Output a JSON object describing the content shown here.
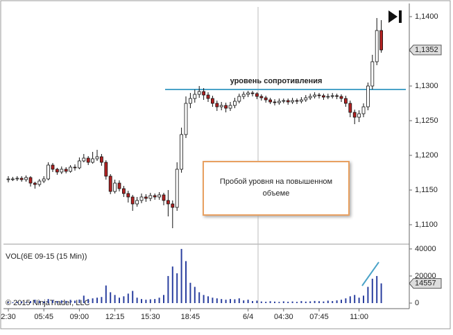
{
  "chart_data": {
    "type": "candlestick",
    "categories": [
      "2:30",
      null,
      null,
      null,
      null,
      null,
      null,
      null,
      "05:45",
      null,
      null,
      null,
      null,
      null,
      null,
      null,
      "09:00",
      null,
      null,
      null,
      null,
      null,
      null,
      null,
      "12:15",
      null,
      null,
      null,
      null,
      null,
      null,
      null,
      "15:30",
      null,
      null,
      null,
      null,
      null,
      null,
      null,
      null,
      "18:45",
      null,
      null,
      null,
      null,
      null,
      null,
      null,
      null,
      null,
      null,
      null,
      null,
      "6/4",
      null,
      null,
      null,
      null,
      null,
      null,
      null,
      "04:30",
      null,
      null,
      null,
      null,
      null,
      null,
      null,
      "07:45",
      null,
      null,
      null,
      null,
      null,
      null,
      null,
      null,
      "11:00",
      null,
      null,
      null,
      null,
      null
    ],
    "open": [
      1.1165,
      1.1166,
      1.1166,
      1.1167,
      1.1165,
      1.1168,
      1.116,
      1.1158,
      1.1163,
      1.1166,
      1.1186,
      1.118,
      1.1176,
      1.118,
      1.1177,
      1.1183,
      1.1182,
      1.1192,
      1.1196,
      1.119,
      1.1195,
      1.1198,
      1.119,
      1.117,
      1.1148,
      1.116,
      1.1152,
      1.1145,
      1.114,
      1.113,
      1.1135,
      1.114,
      1.1138,
      1.1142,
      1.114,
      1.1143,
      1.1135,
      1.113,
      1.1125,
      1.118,
      1.123,
      1.1275,
      1.1282,
      1.1288,
      1.1292,
      1.1287,
      1.1282,
      1.1275,
      1.127,
      1.1272,
      1.1268,
      1.1272,
      1.1278,
      1.1285,
      1.1288,
      1.129,
      1.1289,
      1.1285,
      1.1283,
      1.128,
      1.1277,
      1.1276,
      1.1278,
      1.1279,
      1.1277,
      1.1279,
      1.1278,
      1.128,
      1.1283,
      1.1285,
      1.1287,
      1.1286,
      1.1284,
      1.1285,
      1.1286,
      1.1285,
      1.1282,
      1.1275,
      1.1262,
      1.1255,
      1.126,
      1.127,
      1.13,
      1.1335,
      1.138
    ],
    "high": [
      1.117,
      1.1169,
      1.117,
      1.117,
      1.1171,
      1.117,
      1.1162,
      1.1166,
      1.117,
      1.119,
      1.1189,
      1.1182,
      1.1184,
      1.1183,
      1.1186,
      1.1187,
      1.1197,
      1.1202,
      1.1199,
      1.1205,
      1.1208,
      1.1202,
      1.1193,
      1.1173,
      1.1165,
      1.1164,
      1.1156,
      1.1149,
      1.1143,
      1.114,
      1.1145,
      1.1144,
      1.1146,
      1.1145,
      1.1147,
      1.1146,
      1.115,
      1.1135,
      1.119,
      1.124,
      1.1285,
      1.129,
      1.1295,
      1.13,
      1.1297,
      1.1291,
      1.1286,
      1.1279,
      1.1277,
      1.1276,
      1.1277,
      1.1283,
      1.1289,
      1.1292,
      1.1293,
      1.1293,
      1.1291,
      1.1288,
      1.1286,
      1.1283,
      1.1281,
      1.1282,
      1.1282,
      1.1282,
      1.1283,
      1.1282,
      1.1284,
      1.1287,
      1.1289,
      1.1291,
      1.129,
      1.1289,
      1.1289,
      1.129,
      1.1289,
      1.1288,
      1.1286,
      1.1279,
      1.1266,
      1.1265,
      1.1275,
      1.1305,
      1.1345,
      1.1398,
      1.1395
    ],
    "low": [
      1.1161,
      1.1163,
      1.1163,
      1.1162,
      1.1162,
      1.1155,
      1.1152,
      1.1155,
      1.116,
      1.1164,
      1.1176,
      1.1172,
      1.1173,
      1.1174,
      1.1175,
      1.1178,
      1.118,
      1.119,
      1.1186,
      1.1188,
      1.1192,
      1.1185,
      1.1165,
      1.1144,
      1.1145,
      1.1148,
      1.114,
      1.1132,
      1.112,
      1.1126,
      1.1131,
      1.1133,
      1.1134,
      1.1136,
      1.1136,
      1.1128,
      1.1112,
      1.1095,
      1.112,
      1.1175,
      1.1225,
      1.1268,
      1.1276,
      1.1283,
      1.128,
      1.1277,
      1.127,
      1.1264,
      1.1265,
      1.1262,
      1.1264,
      1.1268,
      1.1275,
      1.1281,
      1.1284,
      1.1285,
      1.1281,
      1.1279,
      1.1276,
      1.1274,
      1.1272,
      1.1273,
      1.1275,
      1.1273,
      1.1274,
      1.1274,
      1.1275,
      1.1277,
      1.128,
      1.1282,
      1.1282,
      1.128,
      1.1281,
      1.1282,
      1.1281,
      1.1277,
      1.127,
      1.1255,
      1.1245,
      1.1248,
      1.1255,
      1.1265,
      1.1295,
      1.133,
      1.1348
    ],
    "close": [
      1.1166,
      1.1166,
      1.1167,
      1.1165,
      1.1168,
      1.116,
      1.1158,
      1.1163,
      1.1166,
      1.1186,
      1.118,
      1.1176,
      1.118,
      1.1177,
      1.1183,
      1.1182,
      1.1192,
      1.1196,
      1.119,
      1.1195,
      1.1198,
      1.119,
      1.117,
      1.1148,
      1.116,
      1.1152,
      1.1145,
      1.114,
      1.113,
      1.1135,
      1.114,
      1.1138,
      1.1142,
      1.114,
      1.1143,
      1.1135,
      1.113,
      1.1125,
      1.118,
      1.123,
      1.1275,
      1.1282,
      1.1288,
      1.1292,
      1.1287,
      1.1282,
      1.1275,
      1.127,
      1.1272,
      1.1268,
      1.1272,
      1.1278,
      1.1285,
      1.1288,
      1.129,
      1.1289,
      1.1285,
      1.1283,
      1.128,
      1.1277,
      1.1276,
      1.1278,
      1.1279,
      1.1277,
      1.1279,
      1.1278,
      1.128,
      1.1283,
      1.1285,
      1.1287,
      1.1286,
      1.1284,
      1.1285,
      1.1286,
      1.1285,
      1.1282,
      1.1275,
      1.1262,
      1.1255,
      1.126,
      1.127,
      1.13,
      1.1335,
      1.138,
      1.1352
    ],
    "up_color": "#ffffff",
    "down_color": "#b22222",
    "ylim": [
      1.1074,
      1.1414
    ],
    "yticks": [
      {
        "value": 1.11,
        "label": "1,1100"
      },
      {
        "value": 1.115,
        "label": "1,1150"
      },
      {
        "value": 1.12,
        "label": "1,1200"
      },
      {
        "value": 1.125,
        "label": "1,1250"
      },
      {
        "value": 1.13,
        "label": "1,1300"
      },
      {
        "value": 1.135,
        "label": "1,1350"
      },
      {
        "value": 1.14,
        "label": "1,1400"
      }
    ],
    "last_price": {
      "value": 1.1352,
      "label": "1,1352"
    },
    "resistance": {
      "value": 1.1295,
      "label": "уровень сопротивления",
      "color": "#4aa3c8"
    },
    "annotation": [
      "Пробой уровня на повышенном",
      "объеме"
    ],
    "volume": {
      "label": "VOL(6E 09-15 (15 Min))",
      "color": "#2a3f9f",
      "values": [
        800,
        600,
        900,
        1200,
        700,
        1500,
        2500,
        1800,
        1200,
        3000,
        2200,
        1500,
        2000,
        1600,
        2400,
        1800,
        2600,
        5500,
        3000,
        3500,
        4000,
        4500,
        13000,
        8000,
        6000,
        4000,
        5000,
        7000,
        9000,
        4000,
        3000,
        2500,
        2800,
        3000,
        4000,
        6000,
        20000,
        27000,
        22000,
        40000,
        31000,
        15000,
        12000,
        8000,
        6000,
        5000,
        4000,
        3500,
        3000,
        2500,
        3000,
        2800,
        3500,
        2000,
        2500,
        1500,
        1800,
        1200,
        1000,
        1400,
        1100,
        900,
        1300,
        1000,
        1200,
        900,
        1500,
        1100,
        1300,
        1600,
        1400,
        1200,
        1800,
        1500,
        2000,
        2500,
        3500,
        5000,
        6000,
        4000,
        5500,
        12000,
        18000,
        20000,
        14557
      ],
      "ylim": [
        0,
        42000
      ],
      "yticks": [
        0,
        20000,
        40000
      ],
      "last_value": 14557
    },
    "copyright": "© 2015 NinjaTrader, LLC"
  }
}
